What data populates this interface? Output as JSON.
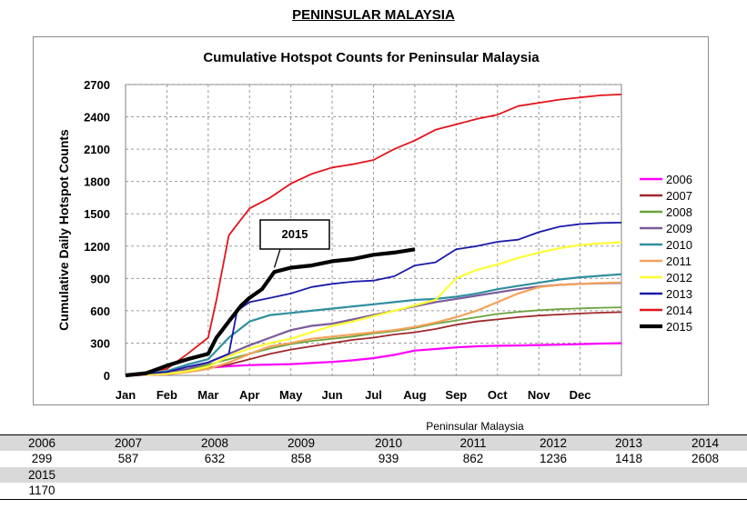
{
  "page": {
    "heading": "PENINSULAR MALAYSIA"
  },
  "chart_data": {
    "type": "line",
    "title": "Cumulative Hotspot Counts for Peninsular Malaysia",
    "xlabel": "",
    "ylabel": "Cumulative Daily Hotspot Counts",
    "ylim": [
      0,
      2700
    ],
    "yticks": [
      0,
      300,
      600,
      900,
      1200,
      1500,
      1800,
      2100,
      2400,
      2700
    ],
    "xlim": [
      0,
      12
    ],
    "month_labels": [
      "Jan",
      "Feb",
      "Mar",
      "Apr",
      "May",
      "Jun",
      "Jul",
      "Aug",
      "Sep",
      "Oct",
      "Nov",
      "Dec"
    ],
    "grid": true,
    "legend_position": "right",
    "annotation": {
      "text": "2015",
      "points_to_x": 3.6,
      "points_to_y": 1000
    },
    "series": [
      {
        "name": "2006",
        "color": "#ff00ff",
        "width": 2.2,
        "x": [
          0,
          1,
          1.5,
          2,
          2.5,
          3,
          3.5,
          4,
          4.5,
          5,
          5.5,
          6,
          6.5,
          7,
          7.5,
          8,
          8.5,
          9,
          9.5,
          10,
          10.5,
          11,
          11.5,
          12
        ],
        "y": [
          0,
          10,
          40,
          70,
          85,
          95,
          100,
          105,
          115,
          125,
          140,
          160,
          190,
          230,
          245,
          260,
          270,
          275,
          278,
          282,
          285,
          290,
          295,
          299
        ]
      },
      {
        "name": "2007",
        "color": "#a0282c",
        "width": 1.8,
        "x": [
          0,
          1,
          1.5,
          2,
          2.5,
          3,
          3.5,
          4,
          4.5,
          5,
          5.5,
          6,
          6.5,
          7,
          7.5,
          8,
          8.5,
          9,
          9.5,
          10,
          10.5,
          11,
          11.5,
          12
        ],
        "y": [
          0,
          20,
          40,
          70,
          100,
          150,
          200,
          240,
          270,
          300,
          330,
          350,
          380,
          400,
          430,
          470,
          500,
          520,
          540,
          555,
          565,
          575,
          582,
          587
        ]
      },
      {
        "name": "2008",
        "color": "#6ba33c",
        "width": 1.8,
        "x": [
          0,
          1,
          1.5,
          2,
          2.5,
          3,
          3.5,
          4,
          4.5,
          5,
          5.5,
          6,
          6.5,
          7,
          7.5,
          8,
          8.5,
          9,
          9.5,
          10,
          10.5,
          11,
          11.5,
          12
        ],
        "y": [
          0,
          20,
          50,
          100,
          150,
          200,
          250,
          290,
          320,
          340,
          360,
          390,
          410,
          440,
          480,
          510,
          540,
          570,
          590,
          605,
          615,
          622,
          628,
          632
        ]
      },
      {
        "name": "2009",
        "color": "#7a5a9c",
        "width": 2.2,
        "x": [
          0,
          1,
          1.5,
          2,
          2.5,
          3,
          3.5,
          4,
          4.5,
          5,
          5.5,
          6,
          6.5,
          7,
          7.5,
          8,
          8.5,
          9,
          9.5,
          10,
          10.5,
          11,
          11.5,
          12
        ],
        "y": [
          0,
          30,
          60,
          120,
          200,
          280,
          350,
          420,
          460,
          480,
          520,
          560,
          600,
          640,
          680,
          710,
          740,
          770,
          800,
          825,
          840,
          850,
          855,
          858
        ]
      },
      {
        "name": "2010",
        "color": "#2f8f9f",
        "width": 2.2,
        "x": [
          0,
          1,
          1.5,
          2,
          2.5,
          3,
          3.5,
          4,
          4.5,
          5,
          5.5,
          6,
          6.5,
          7,
          7.5,
          8,
          8.5,
          9,
          9.5,
          10,
          10.5,
          11,
          11.5,
          12
        ],
        "y": [
          0,
          40,
          100,
          150,
          350,
          500,
          560,
          580,
          600,
          620,
          640,
          660,
          680,
          700,
          710,
          730,
          760,
          800,
          830,
          860,
          890,
          910,
          925,
          939
        ]
      },
      {
        "name": "2011",
        "color": "#f4a15a",
        "width": 2.2,
        "x": [
          0,
          1,
          1.5,
          2,
          2.5,
          3,
          3.5,
          4,
          4.5,
          5,
          5.5,
          6,
          6.5,
          7,
          7.5,
          8,
          8.5,
          9,
          9.5,
          10,
          10.5,
          11,
          11.5,
          12
        ],
        "y": [
          0,
          10,
          30,
          60,
          120,
          200,
          270,
          300,
          340,
          360,
          380,
          400,
          420,
          450,
          490,
          540,
          600,
          680,
          760,
          820,
          840,
          850,
          858,
          862
        ]
      },
      {
        "name": "2012",
        "color": "#ffff33",
        "width": 2.2,
        "x": [
          0,
          1,
          1.5,
          2,
          2.5,
          3,
          3.5,
          4,
          4.5,
          5,
          5.5,
          6,
          6.5,
          7,
          7.5,
          8,
          8.5,
          9,
          9.5,
          10,
          10.5,
          11,
          11.5,
          12
        ],
        "y": [
          0,
          15,
          40,
          80,
          180,
          250,
          300,
          340,
          400,
          460,
          500,
          550,
          600,
          650,
          700,
          900,
          980,
          1030,
          1090,
          1140,
          1180,
          1210,
          1225,
          1236
        ]
      },
      {
        "name": "2013",
        "color": "#1a1aaa",
        "width": 1.8,
        "x": [
          0,
          1,
          1.5,
          2,
          2.5,
          2.7,
          3,
          3.5,
          4,
          4.5,
          5,
          5.5,
          6,
          6.5,
          7,
          7.5,
          8,
          8.5,
          9,
          9.5,
          10,
          10.5,
          11,
          11.5,
          12
        ],
        "y": [
          0,
          30,
          80,
          120,
          200,
          600,
          680,
          720,
          760,
          820,
          850,
          870,
          880,
          920,
          1020,
          1050,
          1170,
          1200,
          1240,
          1260,
          1330,
          1380,
          1405,
          1415,
          1418
        ]
      },
      {
        "name": "2014",
        "color": "#e3141c",
        "width": 1.8,
        "x": [
          0,
          1,
          1.5,
          2,
          2.2,
          2.5,
          2.7,
          3,
          3.5,
          4,
          4.5,
          5,
          5.5,
          6,
          6.5,
          7,
          7.5,
          8,
          8.5,
          9,
          9.5,
          10,
          10.5,
          11,
          11.5,
          12
        ],
        "y": [
          0,
          60,
          200,
          350,
          700,
          1300,
          1400,
          1550,
          1650,
          1780,
          1870,
          1930,
          1960,
          2000,
          2100,
          2180,
          2280,
          2330,
          2380,
          2420,
          2500,
          2530,
          2560,
          2580,
          2600,
          2608
        ]
      },
      {
        "name": "2015",
        "color": "#000000",
        "width": 4.2,
        "x": [
          0,
          0.5,
          1,
          1.5,
          2,
          2.2,
          2.5,
          2.8,
          3,
          3.3,
          3.6,
          4,
          4.5,
          5,
          5.5,
          6,
          6.5,
          7
        ],
        "y": [
          0,
          20,
          90,
          150,
          200,
          350,
          500,
          650,
          720,
          800,
          960,
          1000,
          1020,
          1060,
          1080,
          1120,
          1140,
          1170
        ]
      }
    ]
  },
  "table": {
    "title": "Peninsular Malaysia",
    "row1_years": [
      "2006",
      "2007",
      "2008",
      "2009",
      "2010",
      "2011",
      "2012",
      "2013",
      "2014"
    ],
    "row1_values": [
      "299",
      "587",
      "632",
      "858",
      "939",
      "862",
      "1236",
      "1418",
      "2608"
    ],
    "row2_years": [
      "2015"
    ],
    "row2_values": [
      "1170"
    ]
  }
}
